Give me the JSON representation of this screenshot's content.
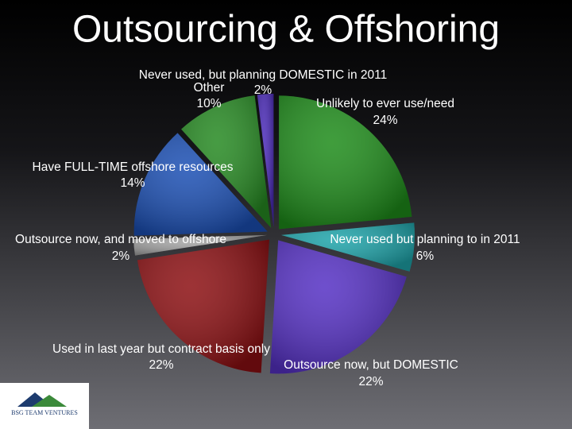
{
  "chart_data": {
    "type": "pie",
    "title": "Outsourcing & Offshoring",
    "categories": [
      "Unlikely to ever use/need",
      "Never used but planning to in 2011",
      "Outsource now, but  DOMESTIC",
      "Used in last year but contract basis only",
      "Outsource now, and moved to offshore",
      "Have FULL-TIME offshore resources",
      "Other",
      "Never used, but planning DOMESTIC in 2011"
    ],
    "values": [
      24,
      6,
      22,
      22,
      2,
      14,
      10,
      2
    ],
    "value_labels": [
      "24%",
      "6%",
      "22%",
      "22%",
      "2%",
      "14%",
      "10%",
      "2%"
    ],
    "colors": [
      "#1e8c1a",
      "#1ea4aa",
      "#5530c4",
      "#8c0f12",
      "#a3a3a3",
      "#1b4fb4",
      "#268a22",
      "#4a2ab8"
    ]
  },
  "logo": {
    "text": "BSG TEAM VENTURES"
  }
}
